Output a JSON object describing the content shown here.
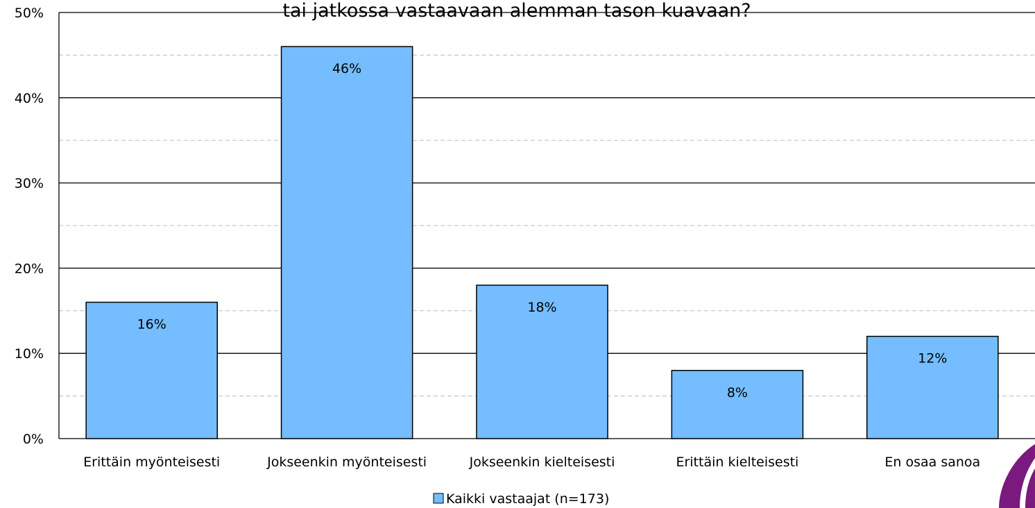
{
  "chart_data": {
    "type": "bar",
    "title": "tai jatkossa vastaavaan alemman tason kuavaan?",
    "categories": [
      "Erittäin myönteisesti",
      "Jokseenkin myönteisesti",
      "Jokseenkin kielteisesti",
      "Erittäin kielteisesti",
      "En osaa sanoa"
    ],
    "series": [
      {
        "name": "Kaikki vastaajat (n=173)",
        "color": "#75bdff",
        "values": [
          16,
          46,
          18,
          8,
          12
        ],
        "value_labels": [
          "16%",
          "46%",
          "18%",
          "8%",
          "12%"
        ]
      }
    ],
    "ylim": [
      0,
      50
    ],
    "yticks": [
      {
        "value": 0,
        "label": "0%"
      },
      {
        "value": 10,
        "label": "10%"
      },
      {
        "value": 20,
        "label": "20%"
      },
      {
        "value": 30,
        "label": "30%"
      },
      {
        "value": 40,
        "label": "40%"
      },
      {
        "value": 50,
        "label": "50%"
      }
    ],
    "minor_yticks": [
      5,
      15,
      25,
      35,
      45
    ],
    "grid": true,
    "legend": "bottom"
  }
}
